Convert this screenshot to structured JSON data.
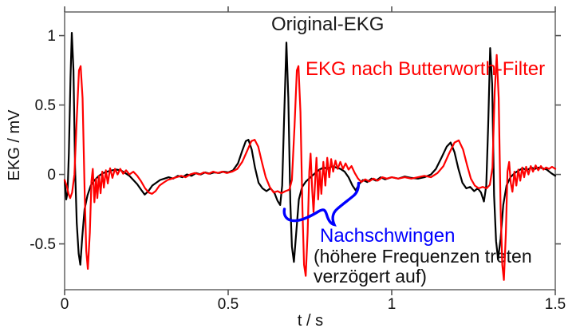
{
  "figure": {
    "ylabel": "EKG / mV",
    "xlabel": "t / s"
  },
  "colors": {
    "original_trace": "#000000",
    "filtered_trace": "#ff0000",
    "annotation_blue": "#0000ff",
    "axis_box": "#6e6e6e",
    "tick": "#555555"
  },
  "chart_data": {
    "type": "line",
    "title": "",
    "xlabel": "t / s",
    "ylabel": "EKG / mV",
    "xlim": [
      0,
      1.5
    ],
    "ylim": [
      -0.83,
      1.17
    ],
    "grid": false,
    "legend_position": "labels drawn inside plot area",
    "xticks": [
      {
        "v": 0,
        "label": "0"
      },
      {
        "v": 0.5,
        "label": "0.5"
      },
      {
        "v": 1,
        "label": "1"
      },
      {
        "v": 1.5,
        "label": "1.5"
      }
    ],
    "yticks": [
      {
        "v": -0.5,
        "label": "-0.5"
      },
      {
        "v": 0,
        "label": "0"
      },
      {
        "v": 0.5,
        "label": "0.5"
      },
      {
        "v": 1,
        "label": "1"
      }
    ],
    "annotations": [
      {
        "text": "Nachschwingen",
        "color": "#0000ff"
      },
      {
        "text": "(höhere Frequenzen treten",
        "color": "#000000"
      },
      {
        "text": "verzögert auf)",
        "color": "#000000"
      },
      {
        "shape": "curly-brace",
        "color": "#0000ff",
        "points_to": "ringing after 2nd QRS complex"
      }
    ],
    "series": [
      {
        "name": "Original-EKG",
        "color": "#000000",
        "points": [
          [
            0.0,
            -0.04
          ],
          [
            0.005,
            -0.18
          ],
          [
            0.009,
            -0.13
          ],
          [
            0.013,
            0.15
          ],
          [
            0.018,
            0.7
          ],
          [
            0.022,
            1.02
          ],
          [
            0.027,
            0.75
          ],
          [
            0.032,
            0.05
          ],
          [
            0.037,
            -0.35
          ],
          [
            0.043,
            -0.57
          ],
          [
            0.048,
            -0.65
          ],
          [
            0.054,
            -0.45
          ],
          [
            0.061,
            -0.25
          ],
          [
            0.07,
            -0.15
          ],
          [
            0.08,
            -0.08
          ],
          [
            0.092,
            -0.04
          ],
          [
            0.105,
            -0.01
          ],
          [
            0.118,
            0.01
          ],
          [
            0.13,
            0.02
          ],
          [
            0.145,
            0.03
          ],
          [
            0.158,
            0.035
          ],
          [
            0.172,
            0.03
          ],
          [
            0.185,
            0.01
          ],
          [
            0.198,
            -0.01
          ],
          [
            0.21,
            -0.04
          ],
          [
            0.222,
            -0.07
          ],
          [
            0.234,
            -0.11
          ],
          [
            0.245,
            -0.145
          ],
          [
            0.256,
            -0.12
          ],
          [
            0.268,
            -0.08
          ],
          [
            0.28,
            -0.06
          ],
          [
            0.292,
            -0.04
          ],
          [
            0.305,
            -0.03
          ],
          [
            0.318,
            -0.02
          ],
          [
            0.332,
            -0.03
          ],
          [
            0.346,
            -0.01
          ],
          [
            0.36,
            -0.02
          ],
          [
            0.374,
            0.0
          ],
          [
            0.388,
            -0.01
          ],
          [
            0.402,
            0.01
          ],
          [
            0.416,
            0.0
          ],
          [
            0.43,
            0.015
          ],
          [
            0.444,
            0.005
          ],
          [
            0.458,
            0.015
          ],
          [
            0.472,
            0.01
          ],
          [
            0.486,
            0.02
          ],
          [
            0.5,
            0.015
          ],
          [
            0.515,
            0.03
          ],
          [
            0.53,
            0.08
          ],
          [
            0.543,
            0.17
          ],
          [
            0.554,
            0.24
          ],
          [
            0.562,
            0.25
          ],
          [
            0.572,
            0.18
          ],
          [
            0.582,
            0.05
          ],
          [
            0.593,
            -0.06
          ],
          [
            0.605,
            -0.1
          ],
          [
            0.617,
            -0.12
          ],
          [
            0.629,
            -0.1
          ],
          [
            0.641,
            -0.13
          ],
          [
            0.651,
            -0.19
          ],
          [
            0.659,
            -0.22
          ],
          [
            0.665,
            -0.08
          ],
          [
            0.671,
            0.4
          ],
          [
            0.678,
            0.95
          ],
          [
            0.684,
            0.55
          ],
          [
            0.69,
            -0.2
          ],
          [
            0.695,
            -0.52
          ],
          [
            0.701,
            -0.63
          ],
          [
            0.708,
            -0.42
          ],
          [
            0.716,
            -0.18
          ],
          [
            0.726,
            -0.09
          ],
          [
            0.738,
            -0.05
          ],
          [
            0.752,
            -0.02
          ],
          [
            0.766,
            0.01
          ],
          [
            0.779,
            0.035
          ],
          [
            0.792,
            0.05
          ],
          [
            0.805,
            0.04
          ],
          [
            0.818,
            0.06
          ],
          [
            0.83,
            0.05
          ],
          [
            0.843,
            0.04
          ],
          [
            0.856,
            0.02
          ],
          [
            0.868,
            -0.02
          ],
          [
            0.88,
            -0.08
          ],
          [
            0.89,
            -0.115
          ],
          [
            0.9,
            -0.07
          ],
          [
            0.912,
            -0.04
          ],
          [
            0.925,
            -0.055
          ],
          [
            0.938,
            -0.03
          ],
          [
            0.952,
            -0.045
          ],
          [
            0.966,
            -0.02
          ],
          [
            0.98,
            -0.035
          ],
          [
            1.0,
            -0.02
          ],
          [
            1.02,
            -0.03
          ],
          [
            1.04,
            -0.015
          ],
          [
            1.06,
            -0.025
          ],
          [
            1.08,
            -0.03
          ],
          [
            1.1,
            -0.02
          ],
          [
            1.12,
            0.0
          ],
          [
            1.135,
            0.04
          ],
          [
            1.152,
            0.12
          ],
          [
            1.168,
            0.2
          ],
          [
            1.18,
            0.23
          ],
          [
            1.192,
            0.16
          ],
          [
            1.204,
            0.04
          ],
          [
            1.216,
            -0.06
          ],
          [
            1.228,
            -0.1
          ],
          [
            1.24,
            -0.09
          ],
          [
            1.252,
            -0.12
          ],
          [
            1.263,
            -0.1
          ],
          [
            1.273,
            -0.13
          ],
          [
            1.282,
            -0.195
          ],
          [
            1.289,
            -0.08
          ],
          [
            1.295,
            0.35
          ],
          [
            1.301,
            0.91
          ],
          [
            1.307,
            0.65
          ],
          [
            1.313,
            -0.15
          ],
          [
            1.319,
            -0.48
          ],
          [
            1.325,
            -0.61
          ],
          [
            1.333,
            -0.46
          ],
          [
            1.341,
            -0.22
          ],
          [
            1.351,
            -0.08
          ],
          [
            1.363,
            -0.02
          ],
          [
            1.376,
            0.01
          ],
          [
            1.389,
            0.03
          ],
          [
            1.401,
            0.045
          ],
          [
            1.413,
            0.03
          ],
          [
            1.426,
            0.05
          ],
          [
            1.438,
            0.04
          ],
          [
            1.45,
            0.05
          ],
          [
            1.462,
            0.045
          ],
          [
            1.474,
            0.035
          ],
          [
            1.487,
            0.01
          ],
          [
            1.5,
            -0.01
          ]
        ]
      },
      {
        "name": "EKG nach Butterworth-Filter",
        "color": "#ff0000",
        "points": [
          [
            0.0,
            -0.04
          ],
          [
            0.006,
            -0.08
          ],
          [
            0.012,
            -0.14
          ],
          [
            0.017,
            -0.17
          ],
          [
            0.023,
            -0.13
          ],
          [
            0.03,
            0.0
          ],
          [
            0.037,
            0.4
          ],
          [
            0.044,
            0.75
          ],
          [
            0.049,
            0.78
          ],
          [
            0.055,
            0.55
          ],
          [
            0.061,
            -0.1
          ],
          [
            0.066,
            -0.55
          ],
          [
            0.071,
            -0.68
          ],
          [
            0.077,
            -0.42
          ],
          [
            0.082,
            -0.05
          ],
          [
            0.086,
            0.04
          ],
          [
            0.091,
            -0.2
          ],
          [
            0.096,
            -0.03
          ],
          [
            0.1,
            -0.17
          ],
          [
            0.105,
            -0.01
          ],
          [
            0.11,
            -0.135
          ],
          [
            0.115,
            0.02
          ],
          [
            0.12,
            -0.095
          ],
          [
            0.126,
            0.03
          ],
          [
            0.132,
            -0.065
          ],
          [
            0.139,
            0.045
          ],
          [
            0.146,
            -0.025
          ],
          [
            0.154,
            0.04
          ],
          [
            0.162,
            0.0
          ],
          [
            0.17,
            0.04
          ],
          [
            0.179,
            0.005
          ],
          [
            0.188,
            0.03
          ],
          [
            0.198,
            0.0
          ],
          [
            0.21,
            0.02
          ],
          [
            0.222,
            -0.01
          ],
          [
            0.234,
            -0.05
          ],
          [
            0.246,
            -0.1
          ],
          [
            0.257,
            -0.13
          ],
          [
            0.267,
            -0.14
          ],
          [
            0.278,
            -0.12
          ],
          [
            0.29,
            -0.08
          ],
          [
            0.302,
            -0.06
          ],
          [
            0.315,
            -0.04
          ],
          [
            0.328,
            -0.03
          ],
          [
            0.342,
            -0.02
          ],
          [
            0.356,
            -0.01
          ],
          [
            0.37,
            -0.02
          ],
          [
            0.384,
            0.0
          ],
          [
            0.398,
            0.01
          ],
          [
            0.412,
            0.0
          ],
          [
            0.426,
            0.015
          ],
          [
            0.44,
            0.005
          ],
          [
            0.454,
            0.02
          ],
          [
            0.468,
            0.01
          ],
          [
            0.482,
            0.02
          ],
          [
            0.496,
            0.01
          ],
          [
            0.512,
            0.02
          ],
          [
            0.528,
            0.04
          ],
          [
            0.543,
            0.09
          ],
          [
            0.558,
            0.17
          ],
          [
            0.571,
            0.24
          ],
          [
            0.581,
            0.25
          ],
          [
            0.592,
            0.2
          ],
          [
            0.603,
            0.09
          ],
          [
            0.615,
            -0.02
          ],
          [
            0.627,
            -0.09
          ],
          [
            0.639,
            -0.13
          ],
          [
            0.651,
            -0.12
          ],
          [
            0.663,
            -0.135
          ],
          [
            0.675,
            -0.12
          ],
          [
            0.687,
            -0.11
          ],
          [
            0.695,
            -0.04
          ],
          [
            0.703,
            0.35
          ],
          [
            0.71,
            0.75
          ],
          [
            0.715,
            0.78
          ],
          [
            0.721,
            0.45
          ],
          [
            0.727,
            -0.25
          ],
          [
            0.732,
            -0.65
          ],
          [
            0.737,
            -0.73
          ],
          [
            0.743,
            -0.42
          ],
          [
            0.748,
            0.02
          ],
          [
            0.752,
            0.15
          ],
          [
            0.757,
            -0.12
          ],
          [
            0.761,
            -0.27
          ],
          [
            0.766,
            -0.04
          ],
          [
            0.77,
            0.12
          ],
          [
            0.775,
            -0.18
          ],
          [
            0.78,
            0.03
          ],
          [
            0.785,
            -0.14
          ],
          [
            0.791,
            0.09
          ],
          [
            0.797,
            -0.08
          ],
          [
            0.803,
            0.12
          ],
          [
            0.809,
            -0.02
          ],
          [
            0.815,
            0.11
          ],
          [
            0.821,
            0.02
          ],
          [
            0.828,
            0.1
          ],
          [
            0.835,
            0.04
          ],
          [
            0.843,
            0.09
          ],
          [
            0.851,
            0.04
          ],
          [
            0.859,
            0.08
          ],
          [
            0.868,
            0.035
          ],
          [
            0.877,
            0.06
          ],
          [
            0.887,
            0.01
          ],
          [
            0.897,
            -0.03
          ],
          [
            0.907,
            -0.055
          ],
          [
            0.919,
            -0.035
          ],
          [
            0.931,
            -0.05
          ],
          [
            0.944,
            -0.03
          ],
          [
            0.957,
            -0.045
          ],
          [
            0.971,
            -0.02
          ],
          [
            0.985,
            -0.03
          ],
          [
            1.0,
            -0.02
          ],
          [
            1.02,
            -0.03
          ],
          [
            1.04,
            -0.02
          ],
          [
            1.06,
            -0.03
          ],
          [
            1.08,
            -0.02
          ],
          [
            1.1,
            -0.01
          ],
          [
            1.12,
            -0.02
          ],
          [
            1.14,
            0.01
          ],
          [
            1.158,
            0.06
          ],
          [
            1.175,
            0.15
          ],
          [
            1.192,
            0.23
          ],
          [
            1.205,
            0.245
          ],
          [
            1.218,
            0.18
          ],
          [
            1.23,
            0.07
          ],
          [
            1.242,
            -0.03
          ],
          [
            1.254,
            -0.08
          ],
          [
            1.266,
            -0.1
          ],
          [
            1.278,
            -0.09
          ],
          [
            1.29,
            -0.1
          ],
          [
            1.3,
            -0.075
          ],
          [
            1.308,
            0.05
          ],
          [
            1.315,
            0.6
          ],
          [
            1.321,
            0.86
          ],
          [
            1.327,
            0.55
          ],
          [
            1.333,
            -0.25
          ],
          [
            1.338,
            -0.65
          ],
          [
            1.343,
            -0.76
          ],
          [
            1.349,
            -0.42
          ],
          [
            1.354,
            0.02
          ],
          [
            1.359,
            0.09
          ],
          [
            1.364,
            -0.06
          ],
          [
            1.369,
            -0.125
          ],
          [
            1.375,
            0.02
          ],
          [
            1.381,
            -0.08
          ],
          [
            1.387,
            0.035
          ],
          [
            1.393,
            -0.045
          ],
          [
            1.399,
            0.05
          ],
          [
            1.405,
            -0.02
          ],
          [
            1.411,
            0.055
          ],
          [
            1.418,
            0.0
          ],
          [
            1.425,
            0.06
          ],
          [
            1.432,
            0.02
          ],
          [
            1.44,
            0.065
          ],
          [
            1.448,
            0.03
          ],
          [
            1.456,
            0.06
          ],
          [
            1.464,
            0.035
          ],
          [
            1.472,
            0.05
          ],
          [
            1.481,
            0.04
          ],
          [
            1.49,
            0.055
          ],
          [
            1.5,
            0.04
          ]
        ]
      }
    ]
  }
}
